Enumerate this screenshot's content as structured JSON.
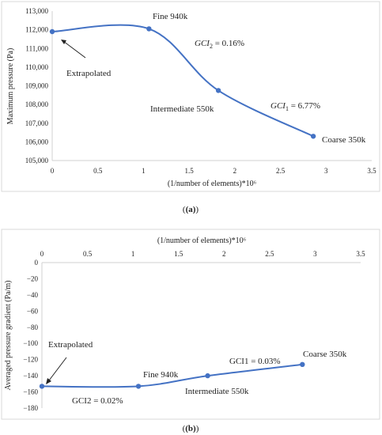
{
  "chart_data": [
    {
      "type": "line",
      "caption": "(a)",
      "x": [
        0,
        1.06,
        1.82,
        2.86
      ],
      "series": [
        {
          "values": [
            111900,
            112050,
            108750,
            106300
          ]
        }
      ],
      "xlabel": "(1/number of elements)*10⁶",
      "ylabel": "Maximum pressure (Pa)",
      "xlim": [
        0,
        3.5
      ],
      "ylim": [
        105000,
        113000
      ],
      "xticks": [
        0,
        0.5,
        1,
        1.5,
        2,
        2.5,
        3,
        3.5
      ],
      "yticks": [
        105000,
        106000,
        107000,
        108000,
        109000,
        110000,
        111000,
        112000,
        113000
      ],
      "xtick_labels": [
        "0",
        "0.5",
        "1",
        "1.5",
        "2",
        "2.5",
        "3",
        "3.5"
      ],
      "ytick_labels": [
        "105,000",
        "106,000",
        "107,000",
        "108,000",
        "109,000",
        "110,000",
        "111,000",
        "112,000",
        "113,000"
      ],
      "grid": false,
      "color": "#4472c4",
      "annotations": [
        {
          "text": "Fine 940k",
          "x": 1.06,
          "y": 112050
        },
        {
          "text": "Intermediate 550k",
          "x": 1.82,
          "y": 108750
        },
        {
          "text": "Coarse 350k",
          "x": 2.86,
          "y": 106300
        },
        {
          "text": "Extrapolated",
          "x": 0,
          "y": 111900
        },
        {
          "text_main": "GCI",
          "text_sub": "2",
          "text_rest": " = 0.16%"
        },
        {
          "text_main": "GCI",
          "text_sub": "1",
          "text_rest": " = 6.77%"
        }
      ]
    },
    {
      "type": "line",
      "caption": "(b)",
      "x": [
        0,
        1.06,
        1.82,
        2.86
      ],
      "series": [
        {
          "values": [
            -153,
            -153,
            -140,
            -126
          ]
        }
      ],
      "xlabel": "(1/number of elements)*10⁶",
      "ylabel": "Averaged pressure gradient (Pa/m)",
      "xlabel_position": "top",
      "xlim": [
        0,
        3.5
      ],
      "ylim": [
        -180,
        0
      ],
      "xticks": [
        0,
        0.5,
        1,
        1.5,
        2,
        2.5,
        3,
        3.5
      ],
      "yticks": [
        0,
        -20,
        -40,
        -60,
        -80,
        -100,
        -120,
        -140,
        -160,
        -180
      ],
      "xtick_labels": [
        "0",
        "0.5",
        "1",
        "1.5",
        "2",
        "2.5",
        "3",
        "3.5"
      ],
      "ytick_labels": [
        "0",
        "−20",
        "−40",
        "−60",
        "−80",
        "−100",
        "−120",
        "−140",
        "−160",
        "−180"
      ],
      "grid": false,
      "color": "#4472c4",
      "annotations": [
        {
          "text": "Fine 940k",
          "x": 1.06,
          "y": -153
        },
        {
          "text": "Intermediate 550k",
          "x": 1.82,
          "y": -140
        },
        {
          "text": "Coarse 350k",
          "x": 2.86,
          "y": -126
        },
        {
          "text": "Extrapolated",
          "x": 0,
          "y": -153
        },
        {
          "text": "GCI2 = 0.02%"
        },
        {
          "text": "GCI1 = 0.03%"
        }
      ]
    }
  ]
}
